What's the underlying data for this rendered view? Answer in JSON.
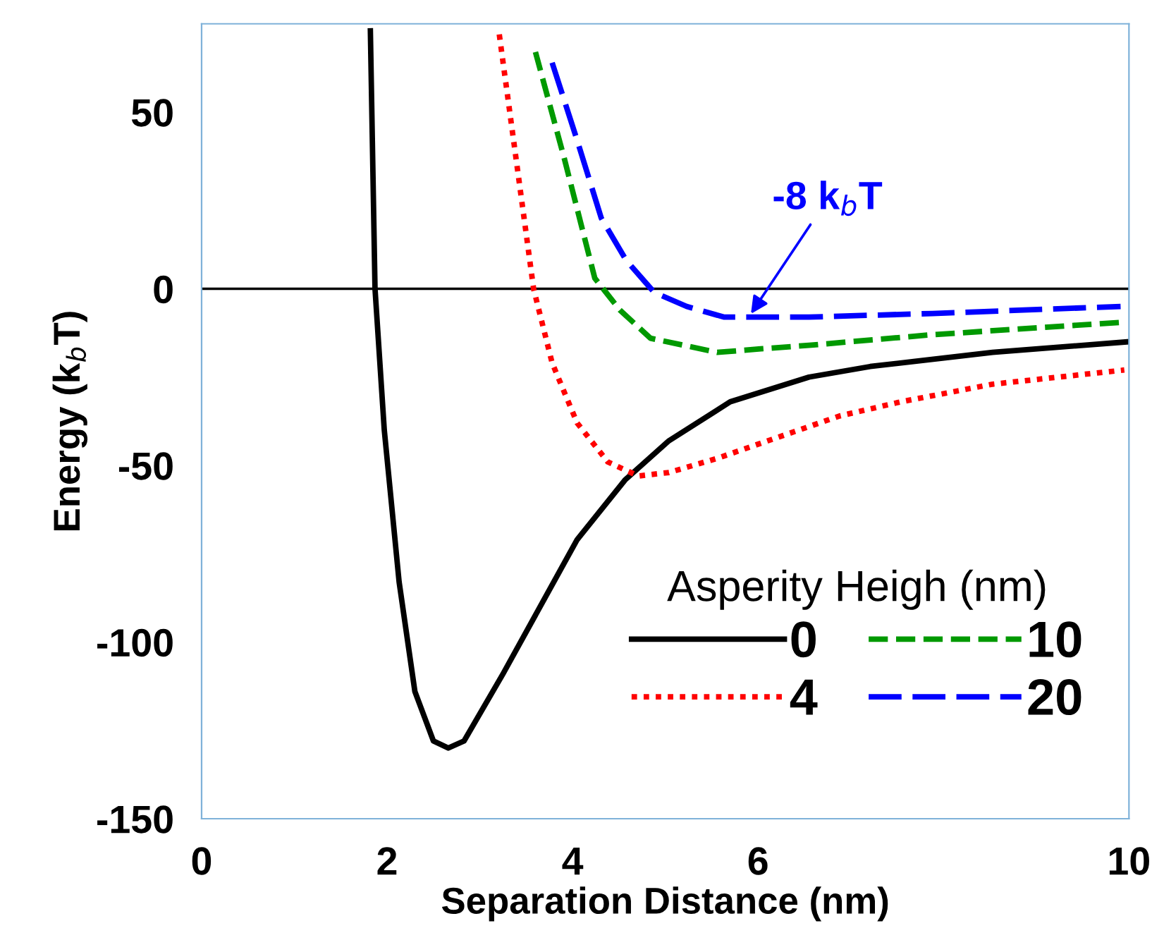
{
  "chart_data": {
    "type": "line",
    "xlabel": "Separation Distance (nm)",
    "ylabel": "Energy (k$_{b}$T)",
    "legend_title": "Asperity Heigh (nm)",
    "legend": "bottom right",
    "grid": false,
    "xlim": [
      0,
      10
    ],
    "xticks": [
      0,
      2,
      4,
      6,
      10
    ],
    "ylim": [
      -150,
      75
    ],
    "yticks": [
      50,
      0,
      -50,
      -100,
      -150
    ],
    "ref_lines": [
      {
        "axis": "y",
        "value": 0,
        "color": "#000000"
      }
    ],
    "annotations": [
      {
        "text": "-8 k$_{b}$T",
        "x": 5.9,
        "y": -8
      }
    ],
    "series": [
      {
        "name": "0",
        "color": "#000000",
        "line_style": "solid",
        "x": [
          1.82,
          1.87,
          1.97,
          2.13,
          2.3,
          2.5,
          2.66,
          2.83,
          3.25,
          3.65,
          4.05,
          4.57,
          5.04,
          5.7,
          6.55,
          7.21,
          8.53,
          9.99
        ],
        "values": [
          73,
          0,
          -40,
          -83,
          -114,
          -128,
          -130,
          -128,
          -109,
          -90,
          -71,
          -54,
          -43,
          -32,
          -25,
          -22,
          -18,
          -15
        ]
      },
      {
        "name": "4",
        "color": "#ff0000",
        "line_style": "dotted",
        "x": [
          3.21,
          3.39,
          3.58,
          3.78,
          4.05,
          4.38,
          4.71,
          5.04,
          5.56,
          6.22,
          6.88,
          7.54,
          8.53,
          9.95
        ],
        "values": [
          72,
          37,
          0,
          -21,
          -38,
          -49,
          -53,
          -52,
          -48,
          -42,
          -36,
          -32,
          -27,
          -23
        ]
      },
      {
        "name": "10",
        "color": "#009900",
        "line_style": "dashed",
        "x": [
          3.6,
          3.91,
          4.24,
          4.51,
          4.84,
          5.56,
          6.03,
          6.55,
          7.88,
          9.91
        ],
        "values": [
          67,
          37,
          3,
          -6,
          -14,
          -18,
          -17,
          -16,
          -13,
          -9.5
        ]
      },
      {
        "name": "20",
        "color": "#0000ff",
        "line_style": "dashed",
        "x": [
          3.78,
          4.05,
          4.31,
          4.58,
          4.88,
          5.23,
          5.63,
          6.55,
          7.88,
          9.91
        ],
        "values": [
          64,
          42,
          20,
          8,
          -1,
          -5,
          -8,
          -8,
          -7,
          -5
        ]
      }
    ]
  }
}
